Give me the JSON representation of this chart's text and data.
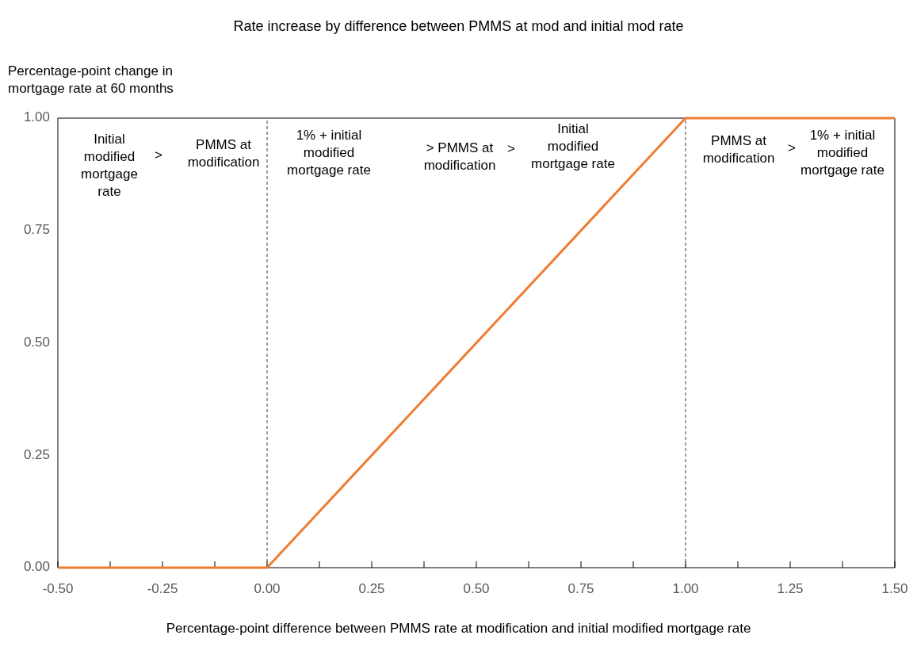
{
  "chart_data": {
    "type": "line",
    "title": "Rate increase by difference between PMMS at mod and initial mod rate",
    "xlabel": "Percentage-point difference between PMMS rate at modification and initial modified mortgage rate",
    "ylabel": "Percentage-point change in\nmortgage rate at 60 months",
    "x": [
      -0.5,
      0,
      1,
      1.5
    ],
    "series": [
      {
        "color": "#ed7d31",
        "values": [
          0,
          0,
          1,
          1
        ]
      }
    ],
    "xlim": [
      -0.5,
      1.5
    ],
    "ylim": [
      0,
      1
    ],
    "xticks": [
      {
        "value": -0.5,
        "label": "-0.50"
      },
      {
        "value": -0.375,
        "label": null
      },
      {
        "value": -0.25,
        "label": "-0.25"
      },
      {
        "value": -0.125,
        "label": null
      },
      {
        "value": 0,
        "label": "0.00"
      },
      {
        "value": 0.125,
        "label": null
      },
      {
        "value": 0.25,
        "label": "0.25"
      },
      {
        "value": 0.375,
        "label": null
      },
      {
        "value": 0.5,
        "label": "0.50"
      },
      {
        "value": 0.625,
        "label": null
      },
      {
        "value": 0.75,
        "label": "0.75"
      },
      {
        "value": 0.875,
        "label": null
      },
      {
        "value": 1,
        "label": "1.00"
      },
      {
        "value": 1.125,
        "label": null
      },
      {
        "value": 1.25,
        "label": "1.25"
      },
      {
        "value": 1.375,
        "label": null
      },
      {
        "value": 1.5,
        "label": "1.50"
      }
    ],
    "yticks": [
      {
        "value": 0,
        "label": "0.00"
      },
      {
        "value": 0.25,
        "label": "0.25"
      },
      {
        "value": 0.5,
        "label": "0.50"
      },
      {
        "value": 0.75,
        "label": "0.75"
      },
      {
        "value": 1,
        "label": "1.00"
      }
    ],
    "grid": false,
    "marker": "none",
    "line_style": "solid",
    "ref_lines": [
      {
        "axis": "x",
        "value": 0,
        "color": "#404040",
        "line_style": "dashed"
      },
      {
        "axis": "x",
        "value": 1,
        "color": "#404040",
        "line_style": "dashed"
      }
    ],
    "annotations": [
      "Initial\nmodified\nmortgage\nrate",
      ">",
      "PMMS at\nmodification",
      "1% + initial\nmodified\nmortgage rate",
      "> PMMS at\nmodification",
      ">",
      "Initial\nmodified\nmortgage rate",
      "PMMS at\nmodification",
      ">",
      "1% + initial\nmodified\nmortgage rate"
    ]
  }
}
